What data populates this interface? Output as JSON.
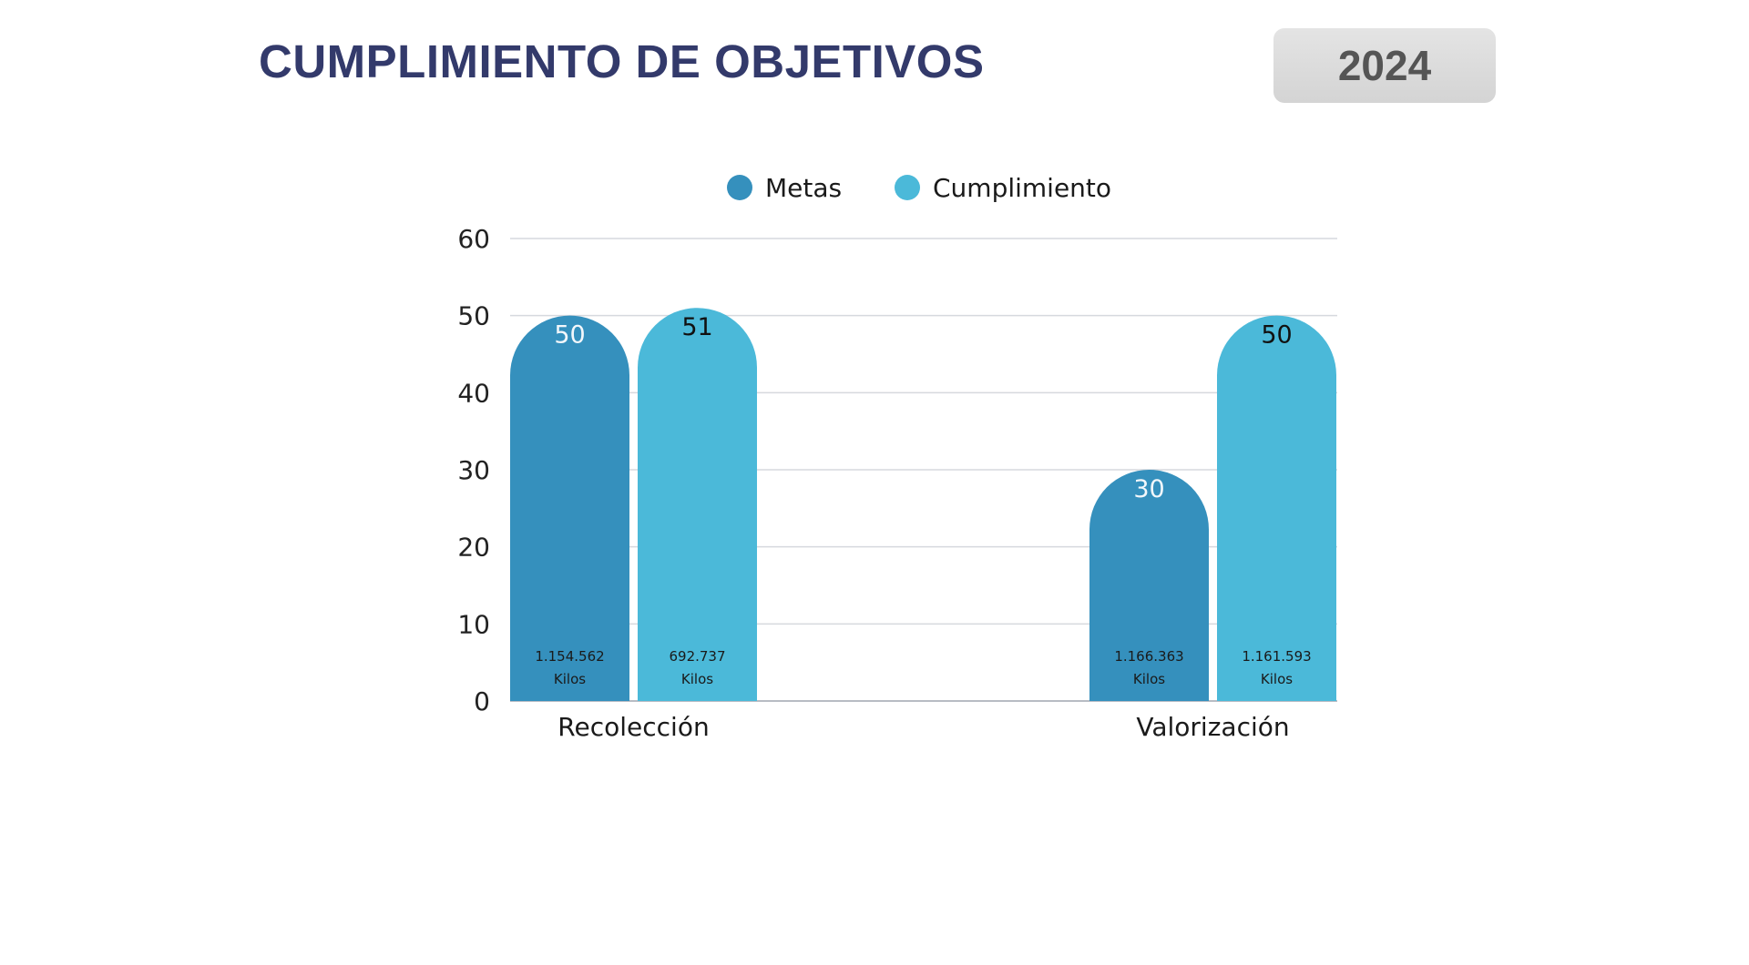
{
  "header": {
    "title": "CUMPLIMIENTO DE OBJETIVOS",
    "year": "2024"
  },
  "colors": {
    "metas": "#3590bd",
    "cumplimiento": "#4bb9d9",
    "title": "#333a6b"
  },
  "chart_data": {
    "type": "bar",
    "title": "",
    "xlabel": "",
    "ylabel": "",
    "ylim": [
      0,
      60
    ],
    "yticks": [
      0,
      10,
      20,
      30,
      40,
      50,
      60
    ],
    "grid": true,
    "legend_position": "top-center",
    "categories": [
      "Recolección",
      "Valorización"
    ],
    "series": [
      {
        "name": "Metas",
        "color": "#3590bd",
        "values": [
          50,
          30
        ],
        "value_labels": [
          "50",
          "30"
        ],
        "bottom_labels": [
          [
            "1.154.562",
            "Kilos"
          ],
          [
            "1.166.363",
            "Kilos"
          ]
        ]
      },
      {
        "name": "Cumplimiento",
        "color": "#4bb9d9",
        "values": [
          51,
          50
        ],
        "value_labels": [
          "51",
          "50"
        ],
        "bottom_labels": [
          [
            "692.737",
            "Kilos"
          ],
          [
            "1.161.593",
            "Kilos"
          ]
        ]
      }
    ]
  }
}
